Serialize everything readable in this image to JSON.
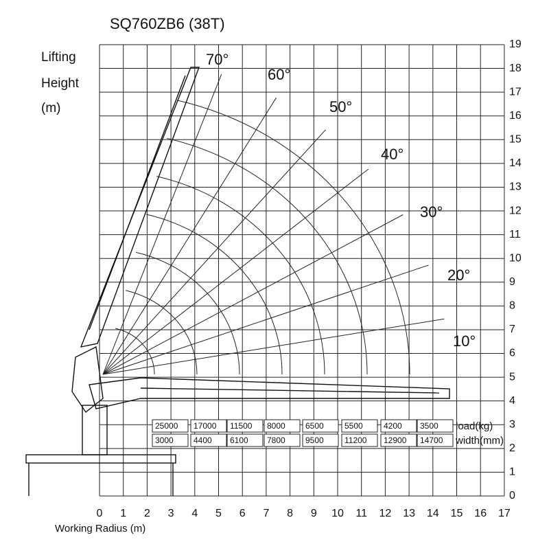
{
  "title": "SQ760ZB6 (38T)",
  "y_axis_label": [
    "Lifting",
    "Height",
    "(m)"
  ],
  "x_axis_label": "Working Radius (m)",
  "x_ticks": [
    "0",
    "1",
    "2",
    "3",
    "4",
    "5",
    "6",
    "7",
    "8",
    "9",
    "10",
    "11",
    "12",
    "13",
    "14",
    "15",
    "16",
    "17"
  ],
  "y_ticks": [
    "0",
    "1",
    "2",
    "3",
    "4",
    "5",
    "6",
    "7",
    "8",
    "9",
    "10",
    "11",
    "12",
    "13",
    "14",
    "15",
    "16",
    "17",
    "18",
    "19"
  ],
  "angle_labels": [
    "70°",
    "60°",
    "50°",
    "40°",
    "30°",
    "20°",
    "10°"
  ],
  "table": {
    "row_labels": [
      "load(kg)",
      "width(mm)"
    ],
    "rows": [
      [
        "25000",
        "17000",
        "11500",
        "8000",
        "6500",
        "5500",
        "4200",
        "3500"
      ],
      [
        "3000",
        "4400",
        "6100",
        "7800",
        "9500",
        "11200",
        "12900",
        "14700"
      ]
    ]
  }
}
